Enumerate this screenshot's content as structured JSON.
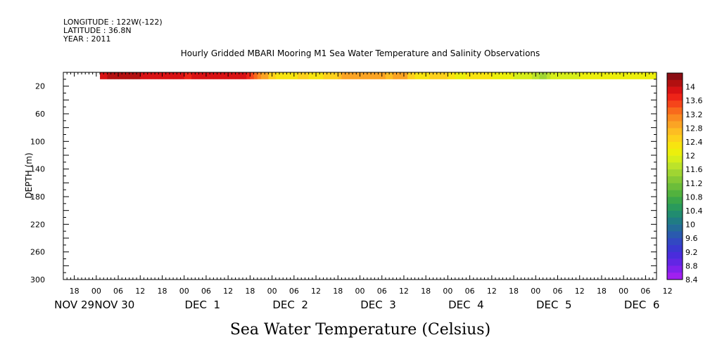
{
  "header": {
    "longitude": "LONGITUDE : 122W(-122)",
    "latitude": "LATITUDE : 36.8N",
    "year": "YEAR : 2011"
  },
  "chart_data": {
    "type": "heatmap",
    "title": "Hourly Gridded MBARI Mooring M1 Sea Water Temperature and Salinity Observations",
    "xlabel": "Sea Water Temperature (Celsius)",
    "ylabel": "DEPTH (m)",
    "ylim": [
      0,
      300
    ],
    "y_inverted": true,
    "y_ticks": [
      20,
      60,
      100,
      140,
      180,
      220,
      260,
      300
    ],
    "x_range_hours": [
      -9,
      153
    ],
    "x_origin": "2011-11-30 00:00",
    "x_hour_ticks": [
      {
        "h": -6,
        "label": "18"
      },
      {
        "h": 0,
        "label": "00"
      },
      {
        "h": 6,
        "label": "06"
      },
      {
        "h": 12,
        "label": "12"
      },
      {
        "h": 18,
        "label": "18"
      },
      {
        "h": 24,
        "label": "00"
      },
      {
        "h": 30,
        "label": "06"
      },
      {
        "h": 36,
        "label": "12"
      },
      {
        "h": 42,
        "label": "18"
      },
      {
        "h": 48,
        "label": "00"
      },
      {
        "h": 54,
        "label": "06"
      },
      {
        "h": 60,
        "label": "12"
      },
      {
        "h": 66,
        "label": "18"
      },
      {
        "h": 72,
        "label": "00"
      },
      {
        "h": 78,
        "label": "06"
      },
      {
        "h": 84,
        "label": "12"
      },
      {
        "h": 90,
        "label": "18"
      },
      {
        "h": 96,
        "label": "00"
      },
      {
        "h": 102,
        "label": "06"
      },
      {
        "h": 108,
        "label": "12"
      },
      {
        "h": 114,
        "label": "18"
      },
      {
        "h": 120,
        "label": "00"
      },
      {
        "h": 126,
        "label": "06"
      },
      {
        "h": 132,
        "label": "12"
      },
      {
        "h": 138,
        "label": "18"
      },
      {
        "h": 144,
        "label": "00"
      },
      {
        "h": 150,
        "label": "06"
      },
      {
        "h": 156,
        "label": "12"
      }
    ],
    "x_day_labels": [
      {
        "h": -6,
        "label": "NOV 29"
      },
      {
        "h": 5,
        "label": "NOV 30"
      },
      {
        "h": 29,
        "label": "DEC  1"
      },
      {
        "h": 53,
        "label": "DEC  2"
      },
      {
        "h": 77,
        "label": "DEC  3"
      },
      {
        "h": 101,
        "label": "DEC  4"
      },
      {
        "h": 125,
        "label": "DEC  5"
      },
      {
        "h": 149,
        "label": "DEC  6"
      }
    ],
    "depth_band": [
      0,
      10
    ],
    "data_start_hour": 1,
    "temperature_hourly": [
      14.0,
      14.0,
      14.1,
      14.1,
      14.1,
      14.1,
      14.1,
      14.1,
      14.1,
      14.1,
      14.1,
      14.0,
      13.9,
      13.9,
      13.9,
      13.8,
      13.8,
      13.8,
      13.8,
      13.8,
      13.8,
      13.8,
      13.8,
      13.7,
      13.7,
      13.8,
      13.8,
      13.8,
      13.8,
      13.8,
      13.9,
      13.9,
      13.9,
      13.9,
      13.9,
      13.9,
      13.8,
      13.8,
      13.8,
      13.8,
      13.7,
      13.6,
      13.4,
      13.2,
      13.0,
      12.8,
      12.6,
      12.5,
      12.4,
      12.3,
      12.3,
      12.3,
      12.4,
      12.4,
      12.5,
      12.5,
      12.5,
      12.4,
      12.3,
      12.3,
      12.4,
      12.5,
      12.6,
      12.6,
      12.6,
      12.7,
      12.8,
      12.9,
      13.0,
      13.0,
      13.0,
      12.9,
      12.9,
      12.9,
      12.8,
      12.8,
      12.8,
      12.8,
      12.7,
      12.7,
      12.8,
      12.9,
      12.9,
      12.8,
      12.6,
      12.5,
      12.4,
      12.3,
      12.3,
      12.4,
      12.5,
      12.6,
      12.6,
      12.6,
      12.5,
      12.4,
      12.3,
      12.2,
      12.2,
      12.2,
      12.3,
      12.3,
      12.3,
      12.4,
      12.4,
      12.4,
      12.3,
      12.2,
      12.2,
      12.1,
      12.1,
      12.1,
      12.1,
      12.0,
      12.0,
      11.9,
      11.9,
      11.8,
      11.7,
      11.7,
      11.6,
      11.6,
      11.7,
      11.8,
      11.9,
      11.9,
      12.0,
      12.0,
      12.0,
      12.0,
      12.0,
      12.1,
      12.1,
      12.1,
      12.2,
      12.2,
      12.2,
      12.2,
      12.2,
      12.2,
      12.2,
      12.2,
      12.2,
      12.2,
      12.2,
      12.2,
      12.2,
      12.2,
      12.2,
      12.2,
      12.2,
      12.2
    ],
    "colorbar": {
      "min": 8.4,
      "max": 14.4,
      "step": 0.2,
      "labels": [
        "14",
        "13.6",
        "13.2",
        "12.8",
        "12.4",
        "12",
        "11.6",
        "11.2",
        "10.8",
        "10.4",
        "10",
        "9.6",
        "9.2",
        "8.8",
        "8.4"
      ],
      "colors_top_to_bottom": [
        "#8b0d14",
        "#b21010",
        "#d81214",
        "#ee2418",
        "#f5451a",
        "#f86a1c",
        "#fa8a20",
        "#fba424",
        "#fdbd22",
        "#fdd11c",
        "#f8e410",
        "#ecef0c",
        "#d6ee1a",
        "#bce32a",
        "#a0d532",
        "#86c936",
        "#6cbd3a",
        "#52b23e",
        "#3aa64a",
        "#2a9a5c",
        "#218c70",
        "#207c84",
        "#246c98",
        "#2a5aae",
        "#3248c2",
        "#3a38d0",
        "#4a2cdc",
        "#6226e4",
        "#8022ec",
        "#a020f0"
      ]
    }
  }
}
